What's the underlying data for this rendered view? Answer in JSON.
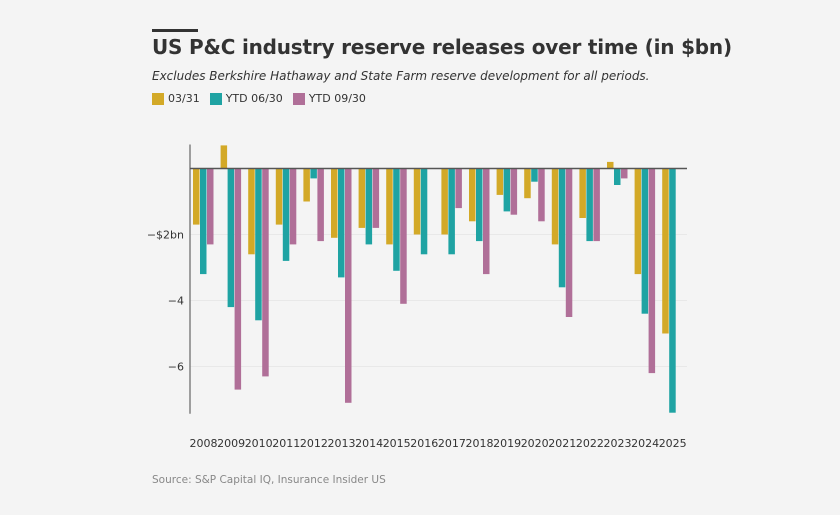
{
  "chart_data": {
    "type": "bar",
    "title": "US P&C industry reserve releases over time (in $bn)",
    "subtitle": "Excludes Berkshire Hathaway and State Farm reserve development for all periods.",
    "source": "Source: S&P Capital IQ, Insurance Insider US",
    "xlabel": "",
    "ylabel": "",
    "ylim": [
      -7.4,
      0.7
    ],
    "grid": true,
    "legend_position": "top-left",
    "categories": [
      "2008",
      "2009",
      "2010",
      "2011",
      "2012",
      "2013",
      "2014",
      "2015",
      "2016",
      "2017",
      "2018",
      "2019",
      "2020",
      "2021",
      "2022",
      "2023",
      "2024",
      "2025"
    ],
    "y_ticks": [
      {
        "value": -2,
        "label": "−$2bn"
      },
      {
        "value": -4,
        "label": "−4"
      },
      {
        "value": -6,
        "label": "−6"
      }
    ],
    "series": [
      {
        "name": "03/31",
        "color": "#d3a927",
        "values": [
          -1.7,
          0.7,
          -2.6,
          -1.7,
          -1.0,
          -2.1,
          -1.8,
          -2.3,
          -2.0,
          -2.0,
          -1.6,
          -0.8,
          -0.9,
          -2.3,
          -1.5,
          0.2,
          -3.2,
          -5.0
        ]
      },
      {
        "name": "YTD 06/30",
        "color": "#1fa3a3",
        "values": [
          -3.2,
          -4.2,
          -4.6,
          -2.8,
          -0.3,
          -3.3,
          -2.3,
          -3.1,
          -2.6,
          -2.6,
          -2.2,
          -1.3,
          -0.4,
          -3.6,
          -2.2,
          -0.5,
          -4.4,
          -7.4
        ]
      },
      {
        "name": "YTD 09/30",
        "color": "#b06f98",
        "values": [
          -2.3,
          -6.7,
          -6.3,
          -2.3,
          -2.2,
          -7.1,
          -1.8,
          -4.1,
          null,
          -1.2,
          -3.2,
          -1.4,
          -1.6,
          -4.5,
          -2.2,
          -0.3,
          -6.2,
          null
        ]
      }
    ]
  }
}
